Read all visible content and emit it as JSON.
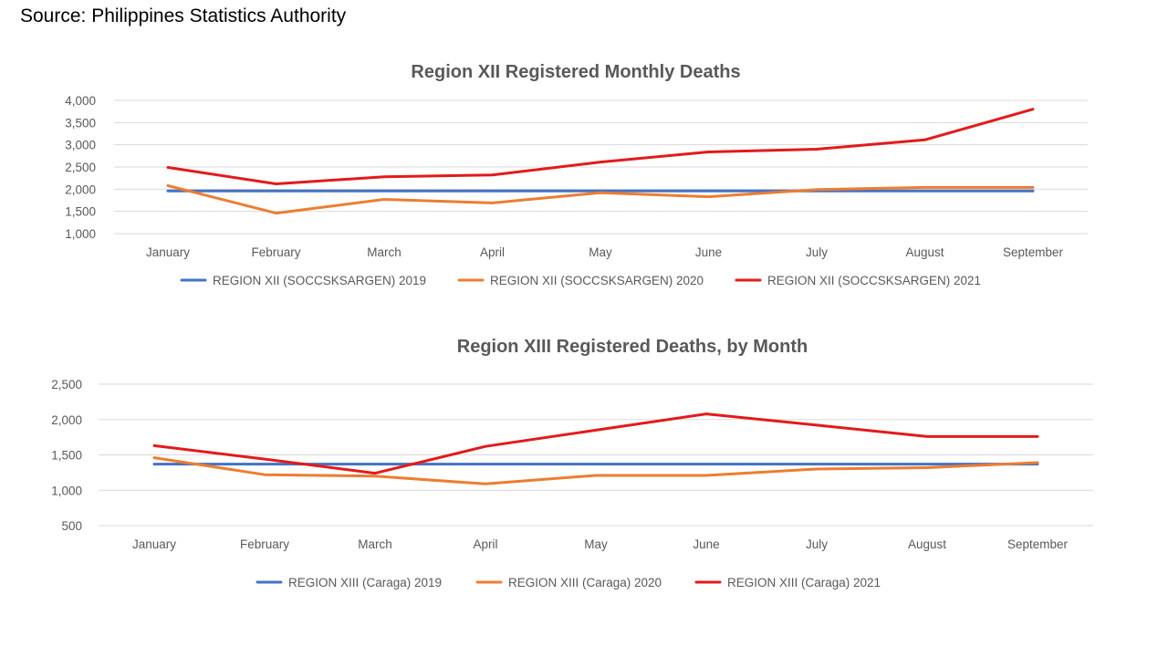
{
  "source_text": "Source:  Philippines Statistics Authority",
  "chart_data": [
    {
      "type": "line",
      "title": "Region XII Registered Monthly Deaths",
      "xlabel": "",
      "ylabel": "",
      "categories": [
        "January",
        "February",
        "March",
        "April",
        "May",
        "June",
        "July",
        "August",
        "September"
      ],
      "ylim": [
        1000,
        4000
      ],
      "yticks": [
        1000,
        1500,
        2000,
        2500,
        3000,
        3500,
        4000
      ],
      "ytick_labels": [
        "1,000",
        "1,500",
        "2,000",
        "2,500",
        "3,000",
        "3,500",
        "4,000"
      ],
      "grid": true,
      "legend_position": "bottom",
      "series": [
        {
          "name": "REGION XII (SOCCSKSARGEN) 2019",
          "color": "#4472c4",
          "values": [
            1960,
            1960,
            1960,
            1960,
            1960,
            1960,
            1960,
            1960,
            1960
          ]
        },
        {
          "name": "REGION XII (SOCCSKSARGEN) 2020",
          "color": "#ed7d31",
          "values": [
            2080,
            1460,
            1770,
            1690,
            1920,
            1830,
            1990,
            2040,
            2040
          ]
        },
        {
          "name": "REGION XII (SOCCSKSARGEN) 2021",
          "color": "#e31a1c",
          "values": [
            2490,
            2120,
            2280,
            2320,
            2610,
            2840,
            2900,
            3110,
            3800
          ]
        }
      ]
    },
    {
      "type": "line",
      "title": "Region XIII Registered Deaths, by Month",
      "xlabel": "",
      "ylabel": "",
      "categories": [
        "January",
        "February",
        "March",
        "April",
        "May",
        "June",
        "July",
        "August",
        "September"
      ],
      "ylim": [
        500,
        2500
      ],
      "yticks": [
        500,
        1000,
        1500,
        2000,
        2500
      ],
      "ytick_labels": [
        "500",
        "1,000",
        "1,500",
        "2,000",
        "2,500"
      ],
      "grid": true,
      "legend_position": "bottom",
      "series": [
        {
          "name": "REGION XIII (Caraga) 2019",
          "color": "#4472c4",
          "values": [
            1370,
            1370,
            1370,
            1370,
            1370,
            1370,
            1370,
            1370,
            1370
          ]
        },
        {
          "name": "REGION XIII (Caraga) 2020",
          "color": "#ed7d31",
          "values": [
            1460,
            1220,
            1200,
            1090,
            1210,
            1210,
            1300,
            1320,
            1390
          ]
        },
        {
          "name": "REGION XIII (Caraga) 2021",
          "color": "#e31a1c",
          "values": [
            1630,
            1440,
            1240,
            1620,
            1850,
            2080,
            1920,
            1760,
            1760
          ]
        }
      ]
    }
  ]
}
